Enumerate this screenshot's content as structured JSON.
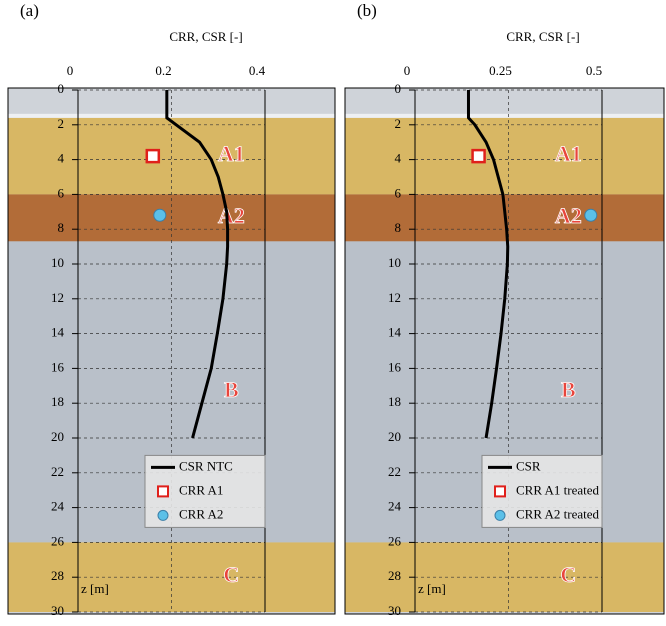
{
  "chart_data": [
    {
      "type": "line",
      "panel_label": "(a)",
      "x_label": "CRR, CSR [-]",
      "y_label": "z [m]",
      "xlim": [
        0,
        0.4
      ],
      "xticks": [
        0,
        0.2,
        0.4
      ],
      "ylim": [
        0,
        30
      ],
      "y_inverted": true,
      "yticks": [
        0,
        2,
        4,
        6,
        8,
        10,
        12,
        14,
        16,
        18,
        20,
        22,
        24,
        26,
        28,
        30
      ],
      "grid": true,
      "legend": "lower right",
      "layers": [
        {
          "name": "A1",
          "top": 1.6,
          "bottom": 6,
          "color": "#d8b764"
        },
        {
          "name": "A2",
          "top": 6,
          "bottom": 8.7,
          "color": "#b26c38"
        },
        {
          "name": "B",
          "top": 8.7,
          "bottom": 26,
          "color": "#b9c0c9"
        },
        {
          "name": "C",
          "top": 26,
          "bottom": 30,
          "color": "#d8b764"
        }
      ],
      "series": [
        {
          "name": "CSR NTC",
          "color": "#000000",
          "marker": "line",
          "z": [
            0,
            1.6,
            2,
            3,
            4,
            5,
            6,
            7,
            8,
            9,
            10,
            12,
            14,
            16,
            18,
            20
          ],
          "values": [
            0.19,
            0.19,
            0.21,
            0.26,
            0.285,
            0.3,
            0.31,
            0.318,
            0.32,
            0.32,
            0.318,
            0.31,
            0.298,
            0.285,
            0.265,
            0.245
          ]
        },
        {
          "name": "CRR A1",
          "color": "#e0201b",
          "marker": "square",
          "z": [
            3.8
          ],
          "values": [
            0.16
          ]
        },
        {
          "name": "CRR A2",
          "color": "#5bc0e8",
          "marker": "circle",
          "z": [
            7.2
          ],
          "values": [
            0.175
          ]
        }
      ]
    },
    {
      "type": "line",
      "panel_label": "(b)",
      "x_label": "CRR, CSR [-]",
      "y_label": "z [m]",
      "xlim": [
        0,
        0.5
      ],
      "xticks": [
        0,
        0.25,
        0.5
      ],
      "ylim": [
        0,
        30
      ],
      "y_inverted": true,
      "yticks": [
        0,
        2,
        4,
        6,
        8,
        10,
        12,
        14,
        16,
        18,
        20,
        22,
        24,
        26,
        28,
        30
      ],
      "grid": true,
      "legend": "lower right",
      "layers": [
        {
          "name": "A1",
          "top": 1.6,
          "bottom": 6,
          "color": "#d8b764"
        },
        {
          "name": "A2",
          "top": 6,
          "bottom": 8.7,
          "color": "#b26c38"
        },
        {
          "name": "B",
          "top": 8.7,
          "bottom": 26,
          "color": "#b9c0c9"
        },
        {
          "name": "C",
          "top": 26,
          "bottom": 30,
          "color": "#d8b764"
        }
      ],
      "series": [
        {
          "name": "CSR",
          "color": "#000000",
          "marker": "line",
          "z": [
            0,
            1.6,
            2,
            3,
            4,
            6,
            8,
            9,
            10,
            12,
            14,
            16,
            18,
            20
          ],
          "values": [
            0.143,
            0.143,
            0.16,
            0.19,
            0.21,
            0.235,
            0.245,
            0.248,
            0.247,
            0.24,
            0.23,
            0.218,
            0.205,
            0.19
          ]
        },
        {
          "name": "CRR A1 treated",
          "color": "#e0201b",
          "marker": "square",
          "z": [
            3.8
          ],
          "values": [
            0.17
          ]
        },
        {
          "name": "CRR A2 treated",
          "color": "#5bc0e8",
          "marker": "circle",
          "z": [
            7.2
          ],
          "values": [
            0.47
          ]
        }
      ]
    }
  ]
}
